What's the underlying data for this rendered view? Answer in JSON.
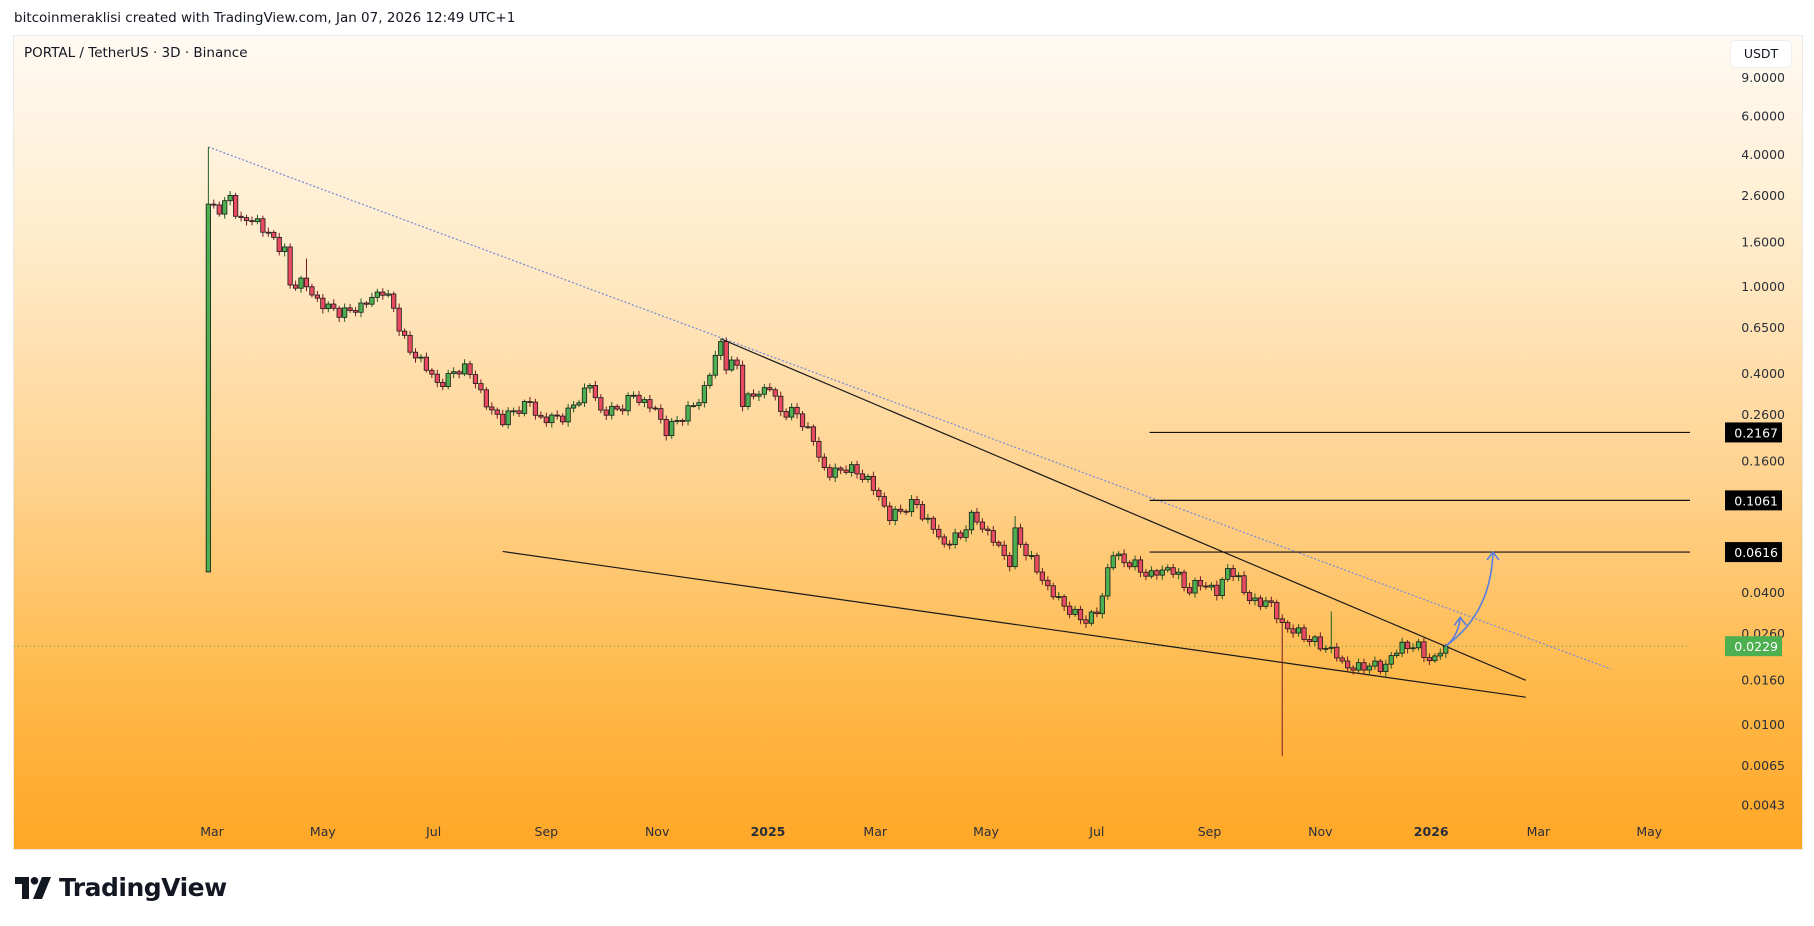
{
  "header": {
    "credit": "bitcoinmeraklisi created with TradingView.com, Jan 07, 2026 12:49 UTC+1"
  },
  "legend": {
    "symbol": "PORTAL / TetherUS · 3D · Binance"
  },
  "currency_button": "USDT",
  "footer": {
    "brand": "TradingView"
  },
  "colors": {
    "up": "#4caf50",
    "down": "#e84a5f",
    "trendline_dotted": "#7b8fd6",
    "arrow": "#5b7fe0",
    "last_price": "#4caf50"
  },
  "chart_data": {
    "type": "candlestick",
    "title": "PORTAL / TetherUS · 3D · Binance",
    "interval_days": 3,
    "x_unit": "days since 2024-03-01",
    "y_scale": "log",
    "ylim": [
      0.0035,
      11
    ],
    "x_ticks": [
      {
        "day": 0,
        "label": "Mar",
        "bold": false
      },
      {
        "day": 61,
        "label": "May",
        "bold": false
      },
      {
        "day": 122,
        "label": "Jul",
        "bold": false
      },
      {
        "day": 184,
        "label": "Sep",
        "bold": false
      },
      {
        "day": 245,
        "label": "Nov",
        "bold": false
      },
      {
        "day": 306,
        "label": "2025",
        "bold": true
      },
      {
        "day": 365,
        "label": "Mar",
        "bold": false
      },
      {
        "day": 426,
        "label": "May",
        "bold": false
      },
      {
        "day": 487,
        "label": "Jul",
        "bold": false
      },
      {
        "day": 549,
        "label": "Sep",
        "bold": false
      },
      {
        "day": 610,
        "label": "Nov",
        "bold": false
      },
      {
        "day": 671,
        "label": "2026",
        "bold": true
      },
      {
        "day": 730,
        "label": "Mar",
        "bold": false
      },
      {
        "day": 791,
        "label": "May",
        "bold": false
      }
    ],
    "y_ticks": [
      {
        "value": 9.0,
        "label": "9.0000"
      },
      {
        "value": 6.0,
        "label": "6.0000"
      },
      {
        "value": 4.0,
        "label": "4.0000"
      },
      {
        "value": 2.6,
        "label": "2.6000"
      },
      {
        "value": 1.6,
        "label": "1.6000"
      },
      {
        "value": 1.0,
        "label": "1.0000"
      },
      {
        "value": 0.65,
        "label": "0.6500"
      },
      {
        "value": 0.4,
        "label": "0.4000"
      },
      {
        "value": 0.26,
        "label": "0.2600"
      },
      {
        "value": 0.16,
        "label": "0.1600"
      },
      {
        "value": 0.04,
        "label": "0.0400"
      },
      {
        "value": 0.026,
        "label": "0.0260"
      },
      {
        "value": 0.016,
        "label": "0.0160"
      },
      {
        "value": 0.01,
        "label": "0.0100"
      },
      {
        "value": 0.0065,
        "label": "0.0065"
      },
      {
        "value": 0.0043,
        "label": "0.0043"
      }
    ],
    "first_candle": {
      "day": -2,
      "open": 0.05,
      "high": 4.36,
      "low": 0.05,
      "close": 2.39
    },
    "close_path": [
      [
        5,
        2.3
      ],
      [
        10,
        2.55
      ],
      [
        15,
        2.02
      ],
      [
        25,
        2.0
      ],
      [
        31,
        1.73
      ],
      [
        40,
        1.47
      ],
      [
        43,
        1.0
      ],
      [
        50,
        1.08
      ],
      [
        56,
        0.89
      ],
      [
        67,
        0.78
      ],
      [
        76,
        0.77
      ],
      [
        85,
        0.85
      ],
      [
        94,
        0.97
      ],
      [
        98,
        0.87
      ],
      [
        103,
        0.67
      ],
      [
        109,
        0.5
      ],
      [
        114,
        0.48
      ],
      [
        124,
        0.36
      ],
      [
        131,
        0.39
      ],
      [
        138,
        0.44
      ],
      [
        146,
        0.36
      ],
      [
        153,
        0.27
      ],
      [
        160,
        0.25
      ],
      [
        175,
        0.3
      ],
      [
        179,
        0.25
      ],
      [
        186,
        0.25
      ],
      [
        195,
        0.26
      ],
      [
        208,
        0.36
      ],
      [
        214,
        0.27
      ],
      [
        223,
        0.275
      ],
      [
        232,
        0.32
      ],
      [
        244,
        0.275
      ],
      [
        250,
        0.22
      ],
      [
        269,
        0.31
      ],
      [
        280,
        0.56
      ],
      [
        283,
        0.44
      ],
      [
        289,
        0.44
      ],
      [
        292,
        0.3
      ],
      [
        298,
        0.32
      ],
      [
        307,
        0.35
      ],
      [
        313,
        0.27
      ],
      [
        322,
        0.265
      ],
      [
        331,
        0.2
      ],
      [
        336,
        0.15
      ],
      [
        340,
        0.14
      ],
      [
        349,
        0.15
      ],
      [
        360,
        0.135
      ],
      [
        367,
        0.11
      ],
      [
        373,
        0.089
      ],
      [
        382,
        0.099
      ],
      [
        388,
        0.103
      ],
      [
        391,
        0.09
      ],
      [
        397,
        0.08
      ],
      [
        402,
        0.066
      ],
      [
        408,
        0.071
      ],
      [
        414,
        0.074
      ],
      [
        416,
        0.09
      ],
      [
        421,
        0.086
      ],
      [
        430,
        0.07
      ],
      [
        434,
        0.063
      ],
      [
        439,
        0.055
      ],
      [
        442,
        0.075
      ],
      [
        447,
        0.064
      ],
      [
        454,
        0.051
      ],
      [
        461,
        0.041
      ],
      [
        468,
        0.036
      ],
      [
        474,
        0.032
      ],
      [
        482,
        0.03
      ],
      [
        487,
        0.033
      ],
      [
        490,
        0.039
      ],
      [
        495,
        0.062
      ],
      [
        500,
        0.057
      ],
      [
        507,
        0.054
      ],
      [
        516,
        0.048
      ],
      [
        526,
        0.052
      ],
      [
        531,
        0.049
      ],
      [
        537,
        0.041
      ],
      [
        545,
        0.045
      ],
      [
        553,
        0.04
      ],
      [
        559,
        0.052
      ],
      [
        564,
        0.047
      ],
      [
        570,
        0.039
      ],
      [
        575,
        0.035
      ],
      [
        581,
        0.038
      ],
      [
        588,
        0.029
      ],
      [
        595,
        0.027
      ],
      [
        603,
        0.025
      ],
      [
        610,
        0.023
      ],
      [
        617,
        0.022
      ],
      [
        622,
        0.019
      ],
      [
        630,
        0.018
      ],
      [
        637,
        0.019
      ],
      [
        644,
        0.018
      ],
      [
        650,
        0.021
      ],
      [
        655,
        0.023
      ],
      [
        663,
        0.023
      ],
      [
        670,
        0.02
      ],
      [
        672,
        0.019
      ],
      [
        676,
        0.022
      ],
      [
        679,
        0.0229
      ]
    ],
    "notable_wicks": [
      {
        "day": 52,
        "high": 1.35
      },
      {
        "day": 280,
        "high": 0.58
      },
      {
        "day": 442,
        "high": 0.09
      },
      {
        "day": 588,
        "low": 0.0072
      },
      {
        "day": 617,
        "high": 0.033
      }
    ],
    "last_price": {
      "value": 0.0229,
      "label": "0.0229"
    },
    "levels": [
      {
        "value": 0.2167,
        "label": "0.2167",
        "from_day": 516
      },
      {
        "value": 0.1061,
        "label": "0.1061",
        "from_day": 516
      },
      {
        "value": 0.0616,
        "label": "0.0616",
        "from_day": 516
      }
    ],
    "trendlines": [
      {
        "name": "dotted-resistance",
        "style": "dotted",
        "from": [
          -2,
          4.36
        ],
        "to": [
          770,
          0.018
        ]
      },
      {
        "name": "wedge-upper",
        "style": "solid",
        "from": [
          280,
          0.58
        ],
        "to": [
          723,
          0.016
        ]
      },
      {
        "name": "wedge-lower",
        "style": "solid",
        "from": [
          160,
          0.062
        ],
        "to": [
          723,
          0.0134
        ]
      }
    ],
    "arrows": [
      {
        "name": "small-target-arrow",
        "from": [
          679,
          0.0229
        ],
        "to": [
          687,
          0.031
        ]
      },
      {
        "name": "large-target-arrow",
        "from": [
          679,
          0.0229
        ],
        "to": [
          705,
          0.0616
        ]
      }
    ]
  }
}
